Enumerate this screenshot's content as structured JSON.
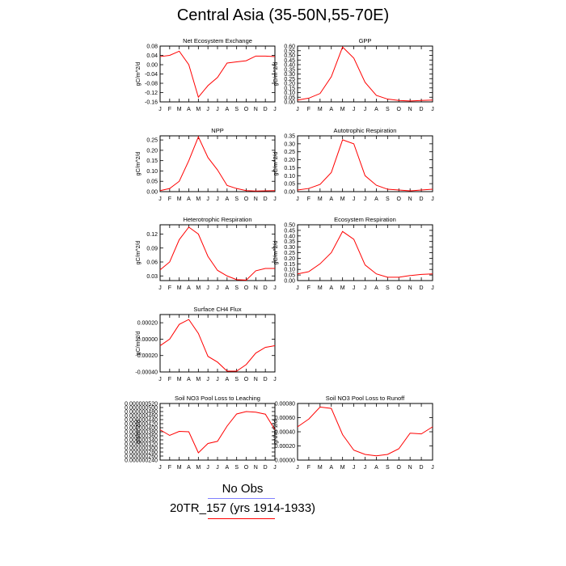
{
  "title": "Central Asia (35-50N,55-70E)",
  "legend": {
    "entries": [
      {
        "label": "No Obs",
        "color": "#7f7fff"
      },
      {
        "label": "20TR_157 (yrs 1914-1933)",
        "color": "#ff0000"
      }
    ]
  },
  "line_color": "#ff0000",
  "chart_data": [
    {
      "type": "line",
      "title": "Net Ecosystem Exchange",
      "ylabel": "gC/m^2/d",
      "x": [
        "J",
        "F",
        "M",
        "A",
        "M",
        "J",
        "J",
        "A",
        "S",
        "O",
        "N",
        "D",
        "J"
      ],
      "ylim": [
        -0.16,
        0.08
      ],
      "yticks": [
        0.08,
        0.04,
        0.0,
        -0.04,
        -0.08,
        -0.12,
        -0.16
      ],
      "ytick_labels": [
        "0.08",
        "0.04",
        "0.00",
        "-0.04",
        "-0.08",
        "-0.12",
        "-0.16"
      ],
      "series": [
        {
          "values": [
            0.035,
            0.04,
            0.058,
            0.0,
            -0.14,
            -0.09,
            -0.055,
            0.007,
            0.012,
            0.017,
            0.037,
            0.037,
            0.035
          ]
        }
      ]
    },
    {
      "type": "line",
      "title": "GPP",
      "ylabel": "gC/m^2/d",
      "x": [
        "J",
        "F",
        "M",
        "A",
        "M",
        "J",
        "J",
        "A",
        "S",
        "O",
        "N",
        "D",
        "J"
      ],
      "ylim": [
        0.0,
        0.6
      ],
      "yticks": [
        0.6,
        0.55,
        0.5,
        0.45,
        0.4,
        0.35,
        0.3,
        0.25,
        0.2,
        0.15,
        0.1,
        0.05,
        0.0
      ],
      "ytick_labels": [
        "0.60",
        "0.55",
        "0.50",
        "0.45",
        "0.40",
        "0.35",
        "0.30",
        "0.25",
        "0.20",
        "0.15",
        "0.10",
        "0.05",
        "0.00"
      ],
      "series": [
        {
          "values": [
            0.02,
            0.04,
            0.09,
            0.27,
            0.59,
            0.47,
            0.21,
            0.07,
            0.03,
            0.015,
            0.01,
            0.015,
            0.02
          ]
        }
      ]
    },
    {
      "type": "line",
      "title": "NPP",
      "ylabel": "gC/m^2/d",
      "x": [
        "J",
        "F",
        "M",
        "A",
        "M",
        "J",
        "J",
        "A",
        "S",
        "O",
        "N",
        "D",
        "J"
      ],
      "ylim": [
        0.0,
        0.27
      ],
      "yticks": [
        0.25,
        0.2,
        0.15,
        0.1,
        0.05,
        0.0
      ],
      "ytick_labels": [
        "0.25",
        "0.20",
        "0.15",
        "0.10",
        "0.05",
        "0.00"
      ],
      "series": [
        {
          "values": [
            0.005,
            0.015,
            0.05,
            0.15,
            0.265,
            0.165,
            0.105,
            0.03,
            0.015,
            0.005,
            0.003,
            0.004,
            0.005
          ]
        }
      ]
    },
    {
      "type": "line",
      "title": "Autotrophic Respiration",
      "ylabel": "gC/m^2/d",
      "x": [
        "J",
        "F",
        "M",
        "A",
        "M",
        "J",
        "J",
        "A",
        "S",
        "O",
        "N",
        "D",
        "J"
      ],
      "ylim": [
        0.0,
        0.35
      ],
      "yticks": [
        0.35,
        0.3,
        0.25,
        0.2,
        0.15,
        0.1,
        0.05,
        0.0
      ],
      "ytick_labels": [
        "0.35",
        "0.30",
        "0.25",
        "0.20",
        "0.15",
        "0.10",
        "0.05",
        "0.00"
      ],
      "series": [
        {
          "values": [
            0.01,
            0.02,
            0.045,
            0.12,
            0.325,
            0.3,
            0.1,
            0.04,
            0.015,
            0.01,
            0.005,
            0.01,
            0.015
          ]
        }
      ]
    },
    {
      "type": "line",
      "title": "Heterotrophic Respiration",
      "ylabel": "gC/m^2/d",
      "x": [
        "J",
        "F",
        "M",
        "A",
        "M",
        "J",
        "J",
        "A",
        "S",
        "O",
        "N",
        "D",
        "J"
      ],
      "ylim": [
        0.02,
        0.14
      ],
      "yticks": [
        0.12,
        0.09,
        0.06,
        0.03
      ],
      "ytick_labels": [
        "0.12",
        "0.09",
        "0.06",
        "0.03"
      ],
      "series": [
        {
          "values": [
            0.043,
            0.06,
            0.108,
            0.135,
            0.12,
            0.072,
            0.042,
            0.03,
            0.022,
            0.021,
            0.041,
            0.046,
            0.046
          ]
        }
      ]
    },
    {
      "type": "line",
      "title": "Ecosystem Respiration",
      "ylabel": "gC/m^2/d",
      "x": [
        "J",
        "F",
        "M",
        "A",
        "M",
        "J",
        "J",
        "A",
        "S",
        "O",
        "N",
        "D",
        "J"
      ],
      "ylim": [
        0.0,
        0.5
      ],
      "yticks": [
        0.5,
        0.45,
        0.4,
        0.35,
        0.3,
        0.25,
        0.2,
        0.15,
        0.1,
        0.05,
        0.0
      ],
      "ytick_labels": [
        "0.50",
        "0.45",
        "0.40",
        "0.35",
        "0.30",
        "0.25",
        "0.20",
        "0.15",
        "0.10",
        "0.05",
        "0.00"
      ],
      "series": [
        {
          "values": [
            0.06,
            0.08,
            0.15,
            0.25,
            0.44,
            0.37,
            0.14,
            0.06,
            0.03,
            0.03,
            0.045,
            0.055,
            0.06
          ]
        }
      ]
    },
    {
      "type": "line",
      "title": "Surface CH4 Flux",
      "ylabel": "gC/m^2/d",
      "x": [
        "J",
        "F",
        "M",
        "A",
        "M",
        "J",
        "J",
        "A",
        "S",
        "O",
        "N",
        "D",
        "J"
      ],
      "ylim": [
        -0.0004,
        0.0003
      ],
      "yticks": [
        0.0002,
        0.0,
        -0.0002,
        -0.0004
      ],
      "ytick_labels": [
        "0.00020",
        "0.00000",
        "-0.00020",
        "-0.00040"
      ],
      "series": [
        {
          "values": [
            -8e-05,
            -0.0,
            0.00018,
            0.00024,
            7e-05,
            -0.00021,
            -0.00028,
            -0.00039,
            -0.00039,
            -0.00031,
            -0.00017,
            -0.0001,
            -8e-05
          ]
        }
      ]
    },
    {
      "type": "line",
      "title": "Soil NO3 Pool Loss to Leaching",
      "ylabel": "gN/m^2/d",
      "x": [
        "J",
        "F",
        "M",
        "A",
        "M",
        "J",
        "J",
        "A",
        "S",
        "O",
        "N",
        "D",
        "J"
      ],
      "ylim": [
        2.4e-07,
        5.2e-07
      ],
      "yticks": [
        5.2e-07,
        5e-07,
        4.8e-07,
        4.6e-07,
        4.4e-07,
        4.2e-07,
        4e-07,
        3.8e-07,
        3.6e-07,
        3.4e-07,
        3.2e-07,
        3e-07,
        2.8e-07,
        2.6e-07,
        2.4e-07
      ],
      "ytick_labels": [
        "0.000000520",
        "0.000000500",
        "0.000000480",
        "0.000000460",
        "0.000000440",
        "0.000000420",
        "0.000000400",
        "0.000000380",
        "0.000000360",
        "0.000000340",
        "0.000000320",
        "0.000000300",
        "0.000000280",
        "0.000000260",
        "0.000000240"
      ],
      "series": [
        {
          "values": [
            3.9e-07,
            3.62e-07,
            3.82e-07,
            3.8e-07,
            2.76e-07,
            3.22e-07,
            3.33e-07,
            4.08e-07,
            4.68e-07,
            4.8e-07,
            4.77e-07,
            4.67e-07,
            3.9e-07
          ]
        }
      ]
    },
    {
      "type": "line",
      "title": "Soil NO3 Pool Loss to Runoff",
      "ylabel": "gN/m^2/d",
      "x": [
        "J",
        "F",
        "M",
        "A",
        "M",
        "J",
        "J",
        "A",
        "S",
        "O",
        "N",
        "D",
        "J"
      ],
      "ylim": [
        0.0,
        0.0008
      ],
      "yticks": [
        0.0008,
        0.0006,
        0.0004,
        0.0002,
        0.0
      ],
      "ytick_labels": [
        "0.00080",
        "0.00060",
        "0.00040",
        "0.00020",
        "0.00000"
      ],
      "series": [
        {
          "values": [
            0.00047,
            0.00058,
            0.00075,
            0.00073,
            0.00036,
            0.00014,
            8e-05,
            6e-05,
            8e-05,
            0.00016,
            0.00038,
            0.00037,
            0.00047
          ]
        }
      ]
    }
  ]
}
